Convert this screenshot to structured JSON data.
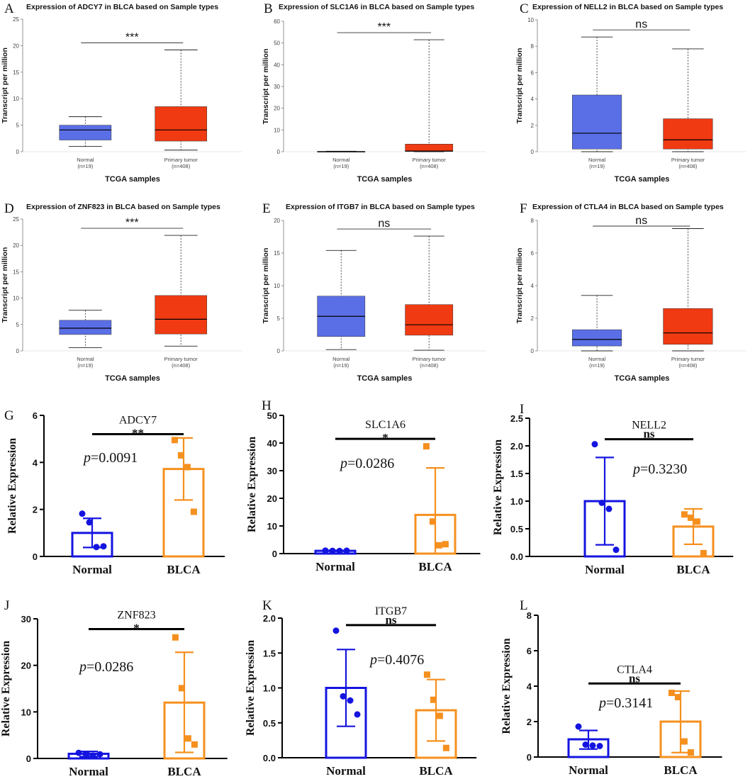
{
  "colors": {
    "normal_box": "#5a6ee6",
    "tumor_box": "#f03a12",
    "normal_bar": "#1414e0",
    "blca_bar": "#f5901e"
  },
  "chart_data": [
    {
      "letter": "A",
      "type": "box",
      "title": "Expression of ADCY7 in BLCA based on Sample types",
      "ylabel": "Transcript per million",
      "xlabel": "TCGA samples",
      "yticks": [
        0,
        5,
        10,
        15,
        20,
        25
      ],
      "ylim": [
        0,
        25
      ],
      "categories": [
        {
          "name": "Normal",
          "n": "(n=19)"
        },
        {
          "name": "Primary tumor",
          "n": "(n=408)"
        }
      ],
      "boxes": [
        {
          "min": 1.0,
          "q1": 2.2,
          "median": 4.1,
          "q3": 5.0,
          "max": 6.6
        },
        {
          "min": 0.3,
          "q1": 2.0,
          "median": 4.1,
          "q3": 8.5,
          "max": 19.2
        }
      ],
      "significance": "***"
    },
    {
      "letter": "B",
      "type": "box",
      "title": "Expression of SLC1A6 in BLCA based on Sample types",
      "ylabel": "Transcript per million",
      "xlabel": "TCGA samples",
      "yticks": [
        0,
        10,
        20,
        30,
        40,
        50,
        60
      ],
      "ylim": [
        0,
        60
      ],
      "categories": [
        {
          "name": "Normal",
          "n": "(n=19)"
        },
        {
          "name": "Primary tumor",
          "n": "(n=408)"
        }
      ],
      "boxes": [
        {
          "min": 0,
          "q1": 0,
          "median": 0,
          "q3": 0.15,
          "max": 0.2
        },
        {
          "min": 0,
          "q1": 0.1,
          "median": 0.3,
          "q3": 3.5,
          "max": 51.5
        }
      ],
      "significance": "***"
    },
    {
      "letter": "C",
      "type": "box",
      "title": "Expression of NELL2 in BLCA based on Sample types",
      "ylabel": "Transcript per million",
      "xlabel": "TCGA samples",
      "yticks": [
        0,
        2,
        4,
        6,
        8,
        10
      ],
      "ylim": [
        0,
        10
      ],
      "categories": [
        {
          "name": "Normal",
          "n": "(n=19)"
        },
        {
          "name": "Primary tumor",
          "n": "(n=408)"
        }
      ],
      "boxes": [
        {
          "min": 0.0,
          "q1": 0.2,
          "median": 1.4,
          "q3": 4.3,
          "max": 8.7
        },
        {
          "min": 0.0,
          "q1": 0.2,
          "median": 0.9,
          "q3": 2.5,
          "max": 7.8
        }
      ],
      "significance": "ns"
    },
    {
      "letter": "D",
      "type": "box",
      "title": "Expression of ZNF823 in BLCA based on Sample types",
      "ylabel": "Transcript per million",
      "xlabel": "TCGA samples",
      "yticks": [
        0,
        5,
        10,
        15,
        20,
        25
      ],
      "ylim": [
        0,
        25
      ],
      "categories": [
        {
          "name": "Normal",
          "n": "(n=19)"
        },
        {
          "name": "Primary tumor",
          "n": "(n=408)"
        }
      ],
      "boxes": [
        {
          "min": 0.6,
          "q1": 3.1,
          "median": 4.3,
          "q3": 5.8,
          "max": 7.7
        },
        {
          "min": 0.9,
          "q1": 3.2,
          "median": 6.0,
          "q3": 10.5,
          "max": 21.9
        }
      ],
      "significance": "***"
    },
    {
      "letter": "E",
      "type": "box",
      "title": "Expression of ITGB7 in BLCA based on Sample types",
      "ylabel": "Transcript per million",
      "xlabel": "TCGA samples",
      "yticks": [
        0,
        5,
        10,
        15,
        20
      ],
      "ylim": [
        0,
        20
      ],
      "categories": [
        {
          "name": "Normal",
          "n": "(n=19)"
        },
        {
          "name": "Primary tumor",
          "n": "(n=408)"
        }
      ],
      "boxes": [
        {
          "min": 0.2,
          "q1": 2.2,
          "median": 5.3,
          "q3": 8.4,
          "max": 15.4
        },
        {
          "min": 0.1,
          "q1": 2.4,
          "median": 4.0,
          "q3": 7.1,
          "max": 17.6
        }
      ],
      "significance": "ns"
    },
    {
      "letter": "F",
      "type": "box",
      "title": "Expression of CTLA4 in BLCA based on Sample types",
      "ylabel": "Transcript per million",
      "xlabel": "TCGA samples",
      "yticks": [
        0,
        2,
        4,
        6,
        8
      ],
      "ylim": [
        0,
        8
      ],
      "categories": [
        {
          "name": "Normal",
          "n": "(n=19)"
        },
        {
          "name": "Primary tumor",
          "n": "(n=408)"
        }
      ],
      "boxes": [
        {
          "min": 0.0,
          "q1": 0.3,
          "median": 0.7,
          "q3": 1.3,
          "max": 3.4
        },
        {
          "min": 0.0,
          "q1": 0.4,
          "median": 1.1,
          "q3": 2.6,
          "max": 7.5
        }
      ],
      "significance": "ns"
    },
    {
      "letter": "G",
      "type": "bar",
      "gene": "ADCY7",
      "ylabel": "Relative Expression",
      "yticks": [
        "0",
        "2",
        "4",
        "6"
      ],
      "ylim": [
        0,
        6
      ],
      "categories": [
        "Normal",
        "BLCA"
      ],
      "bars": [
        {
          "mean": 1.0,
          "err_low": 0.38,
          "err_high": 1.62,
          "points": [
            1.82,
            1.45,
            0.4,
            0.43
          ]
        },
        {
          "mean": 3.72,
          "err_low": 2.4,
          "err_high": 5.04,
          "points": [
            4.95,
            4.3,
            3.8,
            1.9
          ]
        }
      ],
      "significance": "**",
      "p_label": "p",
      "p_value": "=0.0091"
    },
    {
      "letter": "H",
      "type": "bar",
      "gene": "SLC1A6",
      "ylabel": "Relative Expression",
      "yticks": [
        "0",
        "10",
        "20",
        "30",
        "40",
        "50"
      ],
      "ylim": [
        0,
        50
      ],
      "categories": [
        "Normal",
        "BLCA"
      ],
      "bars": [
        {
          "mean": 1.0,
          "err_low": 0.85,
          "err_high": 1.15,
          "points": [
            1.1,
            1.0,
            0.95,
            1.05
          ]
        },
        {
          "mean": 14.0,
          "err_low": 0.0,
          "err_high": 31.0,
          "points": [
            38.8,
            11.6,
            3.0,
            3.4
          ]
        }
      ],
      "significance": "*",
      "p_label": "p",
      "p_value": "=0.0286"
    },
    {
      "letter": "I",
      "type": "bar",
      "gene": "NELL2",
      "ylabel": "Relative Expression",
      "yticks": [
        "0.0",
        "0.5",
        "1.0",
        "1.5",
        "2.0",
        "2.5"
      ],
      "ylim": [
        0,
        2.5
      ],
      "categories": [
        "Normal",
        "BLCA"
      ],
      "bars": [
        {
          "mean": 1.0,
          "err_low": 0.21,
          "err_high": 1.79,
          "points": [
            2.03,
            0.97,
            0.86,
            0.12
          ]
        },
        {
          "mean": 0.54,
          "err_low": 0.22,
          "err_high": 0.86,
          "points": [
            0.76,
            0.7,
            0.63,
            0.06
          ]
        }
      ],
      "significance": "ns",
      "p_label": "p",
      "p_value": "=0.3230"
    },
    {
      "letter": "J",
      "type": "bar",
      "gene": "ZNF823",
      "ylabel": "Relative Expression",
      "yticks": [
        "0",
        "10",
        "20",
        "30"
      ],
      "ylim": [
        0,
        30
      ],
      "categories": [
        "Normal",
        "BLCA"
      ],
      "bars": [
        {
          "mean": 1.0,
          "err_low": 0.4,
          "err_high": 1.5,
          "points": [
            1.2,
            1.0,
            0.6,
            0.9
          ]
        },
        {
          "mean": 12.0,
          "err_low": 1.3,
          "err_high": 22.8,
          "points": [
            26.0,
            15.1,
            4.3,
            3.0
          ]
        }
      ],
      "significance": "*",
      "p_label": "p",
      "p_value": "=0.0286"
    },
    {
      "letter": "K",
      "type": "bar",
      "gene": "ITGB7",
      "ylabel": "Relative Expression",
      "yticks": [
        "0.0",
        "0.5",
        "1.0",
        "1.5",
        "2.0"
      ],
      "ylim": [
        0,
        2.0
      ],
      "categories": [
        "Normal",
        "BLCA"
      ],
      "bars": [
        {
          "mean": 1.0,
          "err_low": 0.45,
          "err_high": 1.55,
          "points": [
            1.82,
            0.88,
            0.82,
            0.62
          ]
        },
        {
          "mean": 0.68,
          "err_low": 0.24,
          "err_high": 1.12,
          "points": [
            1.19,
            0.83,
            0.6,
            0.14
          ]
        }
      ],
      "significance": "ns",
      "p_label": "p",
      "p_value": "=0.4076"
    },
    {
      "letter": "L",
      "type": "bar",
      "gene": "CTLA4",
      "ylabel": "Relative Expression",
      "yticks": [
        "0",
        "2",
        "4",
        "6",
        "8"
      ],
      "ylim": [
        0,
        8
      ],
      "categories": [
        "Normal",
        "BLCA"
      ],
      "bars": [
        {
          "mean": 1.0,
          "err_low": 0.45,
          "err_high": 1.5,
          "points": [
            1.72,
            0.7,
            0.65,
            0.62
          ]
        },
        {
          "mean": 2.0,
          "err_low": 0.25,
          "err_high": 3.72,
          "points": [
            3.62,
            3.38,
            0.88,
            0.26
          ]
        }
      ],
      "significance": "ns",
      "p_label": "p",
      "p_value": "=0.3141"
    }
  ]
}
